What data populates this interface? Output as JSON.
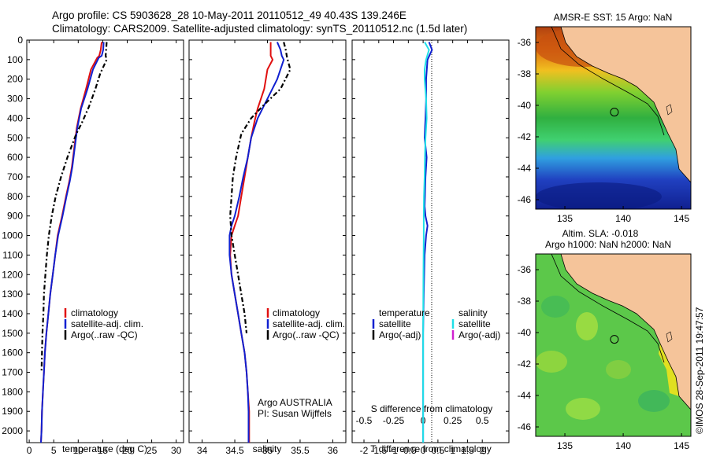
{
  "header": {
    "line1": "Argo profile: CS 5903628_28 10-May-2011 20110512_49 40.43S 139.246E",
    "line2": "Climatology: CARS2009. Satellite-adjusted climatology: synTS_20110512.nc (1.5d later)"
  },
  "stamp": "©IMOS 28-Sep-2011 19:47:57",
  "colors": {
    "climatology": "#e01010",
    "satellite": "#1020d0",
    "argo": "#000000",
    "salinity_sat": "#20e0e8",
    "salinity_argo": "#d020d0",
    "land": "#f5c49a"
  },
  "chart_data": [
    {
      "type": "line",
      "xlabel": "temperature (deg C)",
      "ylabel": "",
      "xlim": [
        -0.5,
        31.5
      ],
      "ylim": [
        0,
        2060
      ],
      "xticks": [
        "0",
        "5",
        "10",
        "15",
        "20",
        "25",
        "30"
      ],
      "yticks": [
        "0",
        "100",
        "200",
        "300",
        "400",
        "500",
        "600",
        "700",
        "800",
        "900",
        "1000",
        "1100",
        "1200",
        "1300",
        "1400",
        "1500",
        "1600",
        "1700",
        "1800",
        "1900",
        "2000"
      ],
      "legend": [
        "climatology",
        "satellite-adj. clim.",
        "Argo(..raw -QC)"
      ],
      "series": [
        {
          "name": "climatology",
          "x": [
            14.8,
            14.6,
            14.3,
            13.9,
            12.6,
            11.6,
            10.5,
            9.7,
            9.2,
            8.7,
            8.2,
            7.5,
            6.7,
            5.8,
            5.3,
            4.8,
            4.3,
            3.9,
            3.5,
            3.2,
            3.0,
            2.8,
            2.6,
            2.5,
            2.4
          ],
          "y": [
            10,
            50,
            80,
            90,
            150,
            250,
            350,
            450,
            550,
            650,
            720,
            800,
            900,
            1000,
            1100,
            1200,
            1300,
            1400,
            1500,
            1600,
            1700,
            1800,
            1900,
            2000,
            2060
          ]
        },
        {
          "name": "satellite-adj. clim.",
          "x": [
            15.2,
            15.1,
            14.8,
            14.2,
            13.0,
            11.9,
            10.6,
            9.8,
            9.3,
            8.8,
            8.3,
            7.6,
            6.8,
            5.9,
            5.3,
            4.8,
            4.3,
            3.9,
            3.5,
            3.2,
            3.0,
            2.8,
            2.6,
            2.5,
            2.4
          ],
          "y": [
            10,
            50,
            80,
            90,
            150,
            250,
            350,
            450,
            550,
            650,
            720,
            800,
            900,
            1000,
            1100,
            1200,
            1300,
            1400,
            1500,
            1600,
            1700,
            1800,
            1900,
            2000,
            2060
          ]
        },
        {
          "name": "Argo(..raw -QC)",
          "x": [
            15.8,
            15.7,
            15.6,
            15.8,
            14.5,
            13.5,
            12.2,
            10.8,
            9.6,
            7.8,
            6.5,
            5.4,
            4.6,
            4.0,
            3.6,
            3.3,
            3.0,
            2.9,
            2.7,
            2.6,
            2.5
          ],
          "y": [
            10,
            50,
            80,
            100,
            170,
            250,
            340,
            420,
            480,
            600,
            700,
            800,
            900,
            1000,
            1100,
            1200,
            1300,
            1400,
            1500,
            1600,
            1700
          ]
        }
      ]
    },
    {
      "type": "line",
      "xlabel": "salinity",
      "ylabel": "",
      "xlim": [
        33.8,
        36.2
      ],
      "ylim": [
        0,
        2060
      ],
      "xticks": [
        "34",
        "34.5",
        "35",
        "35.5",
        "36"
      ],
      "legend": [
        "climatology",
        "satellite-adj. clim.",
        "Argo(..raw -QC)"
      ],
      "annotation": [
        "Argo AUSTRALIA",
        "PI: Susan Wijffels"
      ],
      "series": [
        {
          "name": "climatology",
          "x": [
            35.05,
            35.05,
            35.08,
            35.0,
            34.95,
            34.85,
            34.8,
            34.75,
            34.7,
            34.65,
            34.6,
            34.55,
            34.5,
            34.45,
            34.43,
            34.45,
            34.5,
            34.55,
            34.6,
            34.65,
            34.68,
            34.7,
            34.72,
            34.72,
            34.72
          ],
          "y": [
            10,
            80,
            100,
            150,
            250,
            350,
            420,
            500,
            600,
            700,
            800,
            900,
            950,
            1000,
            1100,
            1200,
            1300,
            1400,
            1500,
            1600,
            1700,
            1800,
            1900,
            2000,
            2060
          ]
        },
        {
          "name": "satellite-adj. clim.",
          "x": [
            35.15,
            35.2,
            35.22,
            35.25,
            35.15,
            35.0,
            34.85,
            34.75,
            34.7,
            34.63,
            34.57,
            34.5,
            34.45,
            34.42,
            34.42,
            34.45,
            34.5,
            34.55,
            34.6,
            34.65,
            34.68,
            34.7,
            34.71,
            34.71,
            34.71
          ],
          "y": [
            10,
            50,
            80,
            100,
            200,
            300,
            400,
            500,
            600,
            700,
            800,
            900,
            950,
            1000,
            1100,
            1200,
            1300,
            1400,
            1500,
            1600,
            1700,
            1800,
            1900,
            2000,
            2060
          ]
        },
        {
          "name": "Argo(..raw -QC)",
          "x": [
            35.25,
            35.28,
            35.3,
            35.35,
            35.2,
            34.95,
            34.75,
            34.6,
            34.52,
            34.47,
            34.45,
            34.43,
            34.45,
            34.5,
            34.55,
            34.6,
            34.65,
            34.68
          ],
          "y": [
            10,
            50,
            90,
            150,
            250,
            330,
            400,
            480,
            600,
            700,
            800,
            900,
            1000,
            1100,
            1200,
            1300,
            1400,
            1500
          ]
        }
      ]
    },
    {
      "type": "line",
      "xlabel": "T difference from climatology",
      "top_xlabel": "S difference from climatology",
      "xlim": [
        -2.4,
        2.9
      ],
      "ylim": [
        0,
        2060
      ],
      "xticks": [
        "-2",
        "-1.5",
        "-1",
        "-0.5",
        "0",
        "0.5",
        "1",
        "1.5",
        "2"
      ],
      "top_xticks": [
        "-0.5",
        "-0.25",
        "0",
        "0.25",
        "0.5"
      ],
      "legend_temperature": {
        "heading": "temperature",
        "items": [
          "satellite",
          "Argo(-adj)"
        ]
      },
      "legend_salinity": {
        "heading": "salinity",
        "items": [
          "satellite",
          "Argo(-adj)"
        ]
      },
      "series": [
        {
          "name": "satellite",
          "x": [
            0.2,
            0.3,
            0.15,
            0.1,
            0.1,
            0.08,
            0.05,
            0.12,
            0.08,
            0.06,
            0.05,
            0.08,
            0.15,
            0.1,
            0.05,
            0.02,
            0.0,
            0.0,
            0.0,
            0.0
          ],
          "y": [
            10,
            50,
            100,
            200,
            300,
            400,
            500,
            600,
            700,
            800,
            850,
            900,
            950,
            1000,
            1100,
            1300,
            1500,
            1700,
            1900,
            2060
          ]
        },
        {
          "name": "satellite",
          "x": [
            0.05,
            0.2,
            0.1,
            0.05,
            0.05,
            0.1,
            0.12,
            0.08,
            0.06,
            0.05,
            0.03,
            0.02,
            0.02,
            0.01,
            0.0,
            0.0,
            0.0
          ],
          "y": [
            10,
            50,
            100,
            150,
            200,
            300,
            400,
            500,
            600,
            700,
            800,
            900,
            1000,
            1200,
            1500,
            1800,
            2060
          ]
        }
      ]
    },
    {
      "type": "heatmap",
      "title": "AMSR-E SST: 15 Argo: NaN",
      "xticks": [
        "135",
        "140",
        "145"
      ],
      "yticks": [
        "-36",
        "-38",
        "-40",
        "-42",
        "-44",
        "-46"
      ],
      "xlim": [
        132.5,
        145.8
      ],
      "ylim": [
        -46.6,
        -35.0
      ],
      "marker": {
        "lon": 139.246,
        "lat": -40.43
      }
    },
    {
      "type": "heatmap",
      "title_line1": "Altim. SLA: -0.018",
      "title_line2": "Argo h1000: NaN h2000: NaN",
      "xticks": [
        "135",
        "140",
        "145"
      ],
      "yticks": [
        "-36",
        "-38",
        "-40",
        "-42",
        "-44",
        "-46"
      ],
      "xlim": [
        132.5,
        145.8
      ],
      "ylim": [
        -46.6,
        -35.0
      ],
      "marker": {
        "lon": 139.246,
        "lat": -40.43
      }
    }
  ]
}
